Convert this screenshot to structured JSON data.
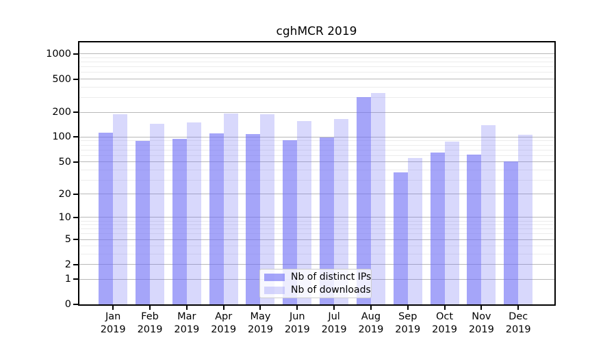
{
  "figure_title": "cghMCR 2019",
  "chart_data": {
    "type": "bar",
    "title": "cghMCR 2019",
    "xlabel": "",
    "ylabel": "",
    "yscale": "log1p",
    "grid": true,
    "legend_position": "lower center",
    "y_ticks": [
      0,
      1,
      2,
      5,
      10,
      20,
      50,
      100,
      200,
      500,
      1000
    ],
    "y_minor_ticks": [
      3,
      4,
      6,
      7,
      8,
      9,
      30,
      40,
      60,
      70,
      80,
      90,
      300,
      400,
      600,
      700,
      800,
      900
    ],
    "ylim": [
      0,
      1400
    ],
    "categories": [
      "Jan",
      "Feb",
      "Mar",
      "Apr",
      "May",
      "Jun",
      "Jul",
      "Aug",
      "Sep",
      "Oct",
      "Nov",
      "Dec"
    ],
    "year_label": "2019",
    "series": [
      {
        "name": "Nb of distinct IPs",
        "color": "rgba(110,110,245,0.62)",
        "color_hex_on_white": "#a8a8f7",
        "values": [
          113,
          90,
          95,
          110,
          108,
          92,
          99,
          304,
          37,
          65,
          61,
          51
        ]
      },
      {
        "name": "Nb of downloads",
        "color": "rgba(110,110,245,0.27)",
        "color_hex_on_white": "#d9d9fb",
        "values": [
          190,
          146,
          151,
          192,
          188,
          156,
          166,
          340,
          56,
          88,
          140,
          107
        ]
      }
    ]
  }
}
